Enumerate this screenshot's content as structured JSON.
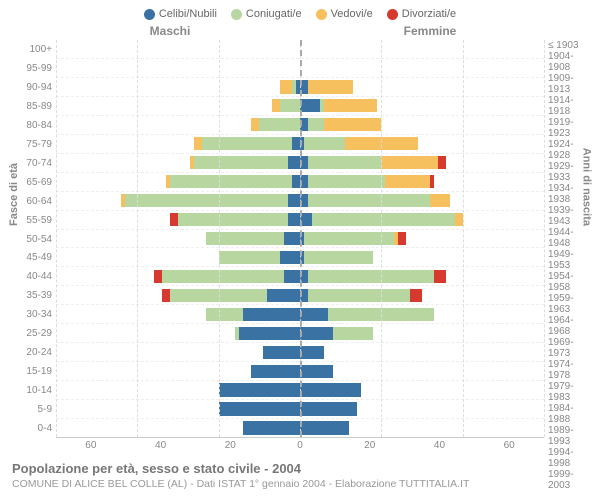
{
  "legend": [
    {
      "label": "Celibi/Nubili",
      "color": "#3a72a4"
    },
    {
      "label": "Coniugati/e",
      "color": "#b8d6a0"
    },
    {
      "label": "Vedovi/e",
      "color": "#f7c05e"
    },
    {
      "label": "Divorziati/e",
      "color": "#d63a2f"
    }
  ],
  "headers": {
    "male": "Maschi",
    "female": "Femmine"
  },
  "axis_left_label": "Fasce di età",
  "axis_right_label": "Anni di nascita",
  "x_ticks": [
    "60",
    "40",
    "20",
    "0",
    "20",
    "40",
    "60"
  ],
  "x_max": 60,
  "colors": {
    "single": "#3a72a4",
    "married": "#b8d6a0",
    "widowed": "#f7c05e",
    "divorced": "#d63a2f",
    "grid": "#dddddd",
    "center": "#aaaaaa"
  },
  "age_labels": [
    "100+",
    "95-99",
    "90-94",
    "85-89",
    "80-84",
    "75-79",
    "70-74",
    "65-69",
    "60-64",
    "55-59",
    "50-54",
    "45-49",
    "40-44",
    "35-39",
    "30-34",
    "25-29",
    "20-24",
    "15-19",
    "10-14",
    "5-9",
    "0-4"
  ],
  "birth_labels": [
    "≤ 1903",
    "1904-1908",
    "1909-1913",
    "1914-1918",
    "1919-1923",
    "1924-1928",
    "1929-1933",
    "1934-1938",
    "1939-1943",
    "1944-1948",
    "1949-1953",
    "1954-1958",
    "1959-1963",
    "1964-1968",
    "1969-1973",
    "1974-1978",
    "1979-1983",
    "1984-1988",
    "1989-1993",
    "1994-1998",
    "1999-2003"
  ],
  "data": [
    {
      "m": {
        "single": 0,
        "married": 0,
        "widowed": 0,
        "divorced": 0
      },
      "f": {
        "single": 0,
        "married": 0,
        "widowed": 0,
        "divorced": 0
      }
    },
    {
      "m": {
        "single": 0,
        "married": 0,
        "widowed": 0,
        "divorced": 0
      },
      "f": {
        "single": 0,
        "married": 0,
        "widowed": 0,
        "divorced": 0
      }
    },
    {
      "m": {
        "single": 1,
        "married": 1,
        "widowed": 3,
        "divorced": 0
      },
      "f": {
        "single": 2,
        "married": 0,
        "widowed": 11,
        "divorced": 0
      }
    },
    {
      "m": {
        "single": 0,
        "married": 5,
        "widowed": 2,
        "divorced": 0
      },
      "f": {
        "single": 5,
        "married": 1,
        "widowed": 13,
        "divorced": 0
      }
    },
    {
      "m": {
        "single": 0,
        "married": 10,
        "widowed": 2,
        "divorced": 0
      },
      "f": {
        "single": 2,
        "married": 4,
        "widowed": 14,
        "divorced": 0
      }
    },
    {
      "m": {
        "single": 2,
        "married": 22,
        "widowed": 2,
        "divorced": 0
      },
      "f": {
        "single": 1,
        "married": 10,
        "widowed": 18,
        "divorced": 0
      }
    },
    {
      "m": {
        "single": 3,
        "married": 23,
        "widowed": 1,
        "divorced": 0
      },
      "f": {
        "single": 2,
        "married": 18,
        "widowed": 14,
        "divorced": 2
      }
    },
    {
      "m": {
        "single": 2,
        "married": 30,
        "widowed": 1,
        "divorced": 0
      },
      "f": {
        "single": 2,
        "married": 19,
        "widowed": 11,
        "divorced": 1
      }
    },
    {
      "m": {
        "single": 3,
        "married": 40,
        "widowed": 1,
        "divorced": 0
      },
      "f": {
        "single": 2,
        "married": 30,
        "widowed": 5,
        "divorced": 0
      }
    },
    {
      "m": {
        "single": 3,
        "married": 27,
        "widowed": 0,
        "divorced": 2
      },
      "f": {
        "single": 3,
        "married": 35,
        "widowed": 2,
        "divorced": 0
      }
    },
    {
      "m": {
        "single": 4,
        "married": 19,
        "widowed": 0,
        "divorced": 0
      },
      "f": {
        "single": 1,
        "married": 22,
        "widowed": 1,
        "divorced": 2
      }
    },
    {
      "m": {
        "single": 5,
        "married": 15,
        "widowed": 0,
        "divorced": 0
      },
      "f": {
        "single": 1,
        "married": 17,
        "widowed": 0,
        "divorced": 0
      }
    },
    {
      "m": {
        "single": 4,
        "married": 30,
        "widowed": 0,
        "divorced": 2
      },
      "f": {
        "single": 2,
        "married": 31,
        "widowed": 0,
        "divorced": 3
      }
    },
    {
      "m": {
        "single": 8,
        "married": 24,
        "widowed": 0,
        "divorced": 2
      },
      "f": {
        "single": 2,
        "married": 25,
        "widowed": 0,
        "divorced": 3
      }
    },
    {
      "m": {
        "single": 14,
        "married": 9,
        "widowed": 0,
        "divorced": 0
      },
      "f": {
        "single": 7,
        "married": 26,
        "widowed": 0,
        "divorced": 0
      }
    },
    {
      "m": {
        "single": 15,
        "married": 1,
        "widowed": 0,
        "divorced": 0
      },
      "f": {
        "single": 8,
        "married": 10,
        "widowed": 0,
        "divorced": 0
      }
    },
    {
      "m": {
        "single": 9,
        "married": 0,
        "widowed": 0,
        "divorced": 0
      },
      "f": {
        "single": 6,
        "married": 0,
        "widowed": 0,
        "divorced": 0
      }
    },
    {
      "m": {
        "single": 12,
        "married": 0,
        "widowed": 0,
        "divorced": 0
      },
      "f": {
        "single": 8,
        "married": 0,
        "widowed": 0,
        "divorced": 0
      }
    },
    {
      "m": {
        "single": 20,
        "married": 0,
        "widowed": 0,
        "divorced": 0
      },
      "f": {
        "single": 15,
        "married": 0,
        "widowed": 0,
        "divorced": 0
      }
    },
    {
      "m": {
        "single": 20,
        "married": 0,
        "widowed": 0,
        "divorced": 0
      },
      "f": {
        "single": 14,
        "married": 0,
        "widowed": 0,
        "divorced": 0
      }
    },
    {
      "m": {
        "single": 14,
        "married": 0,
        "widowed": 0,
        "divorced": 0
      },
      "f": {
        "single": 12,
        "married": 0,
        "widowed": 0,
        "divorced": 0
      }
    }
  ],
  "footer": {
    "title": "Popolazione per età, sesso e stato civile - 2004",
    "subtitle": "COMUNE DI ALICE BEL COLLE (AL) - Dati ISTAT 1° gennaio 2004 - Elaborazione TUTTITALIA.IT"
  }
}
